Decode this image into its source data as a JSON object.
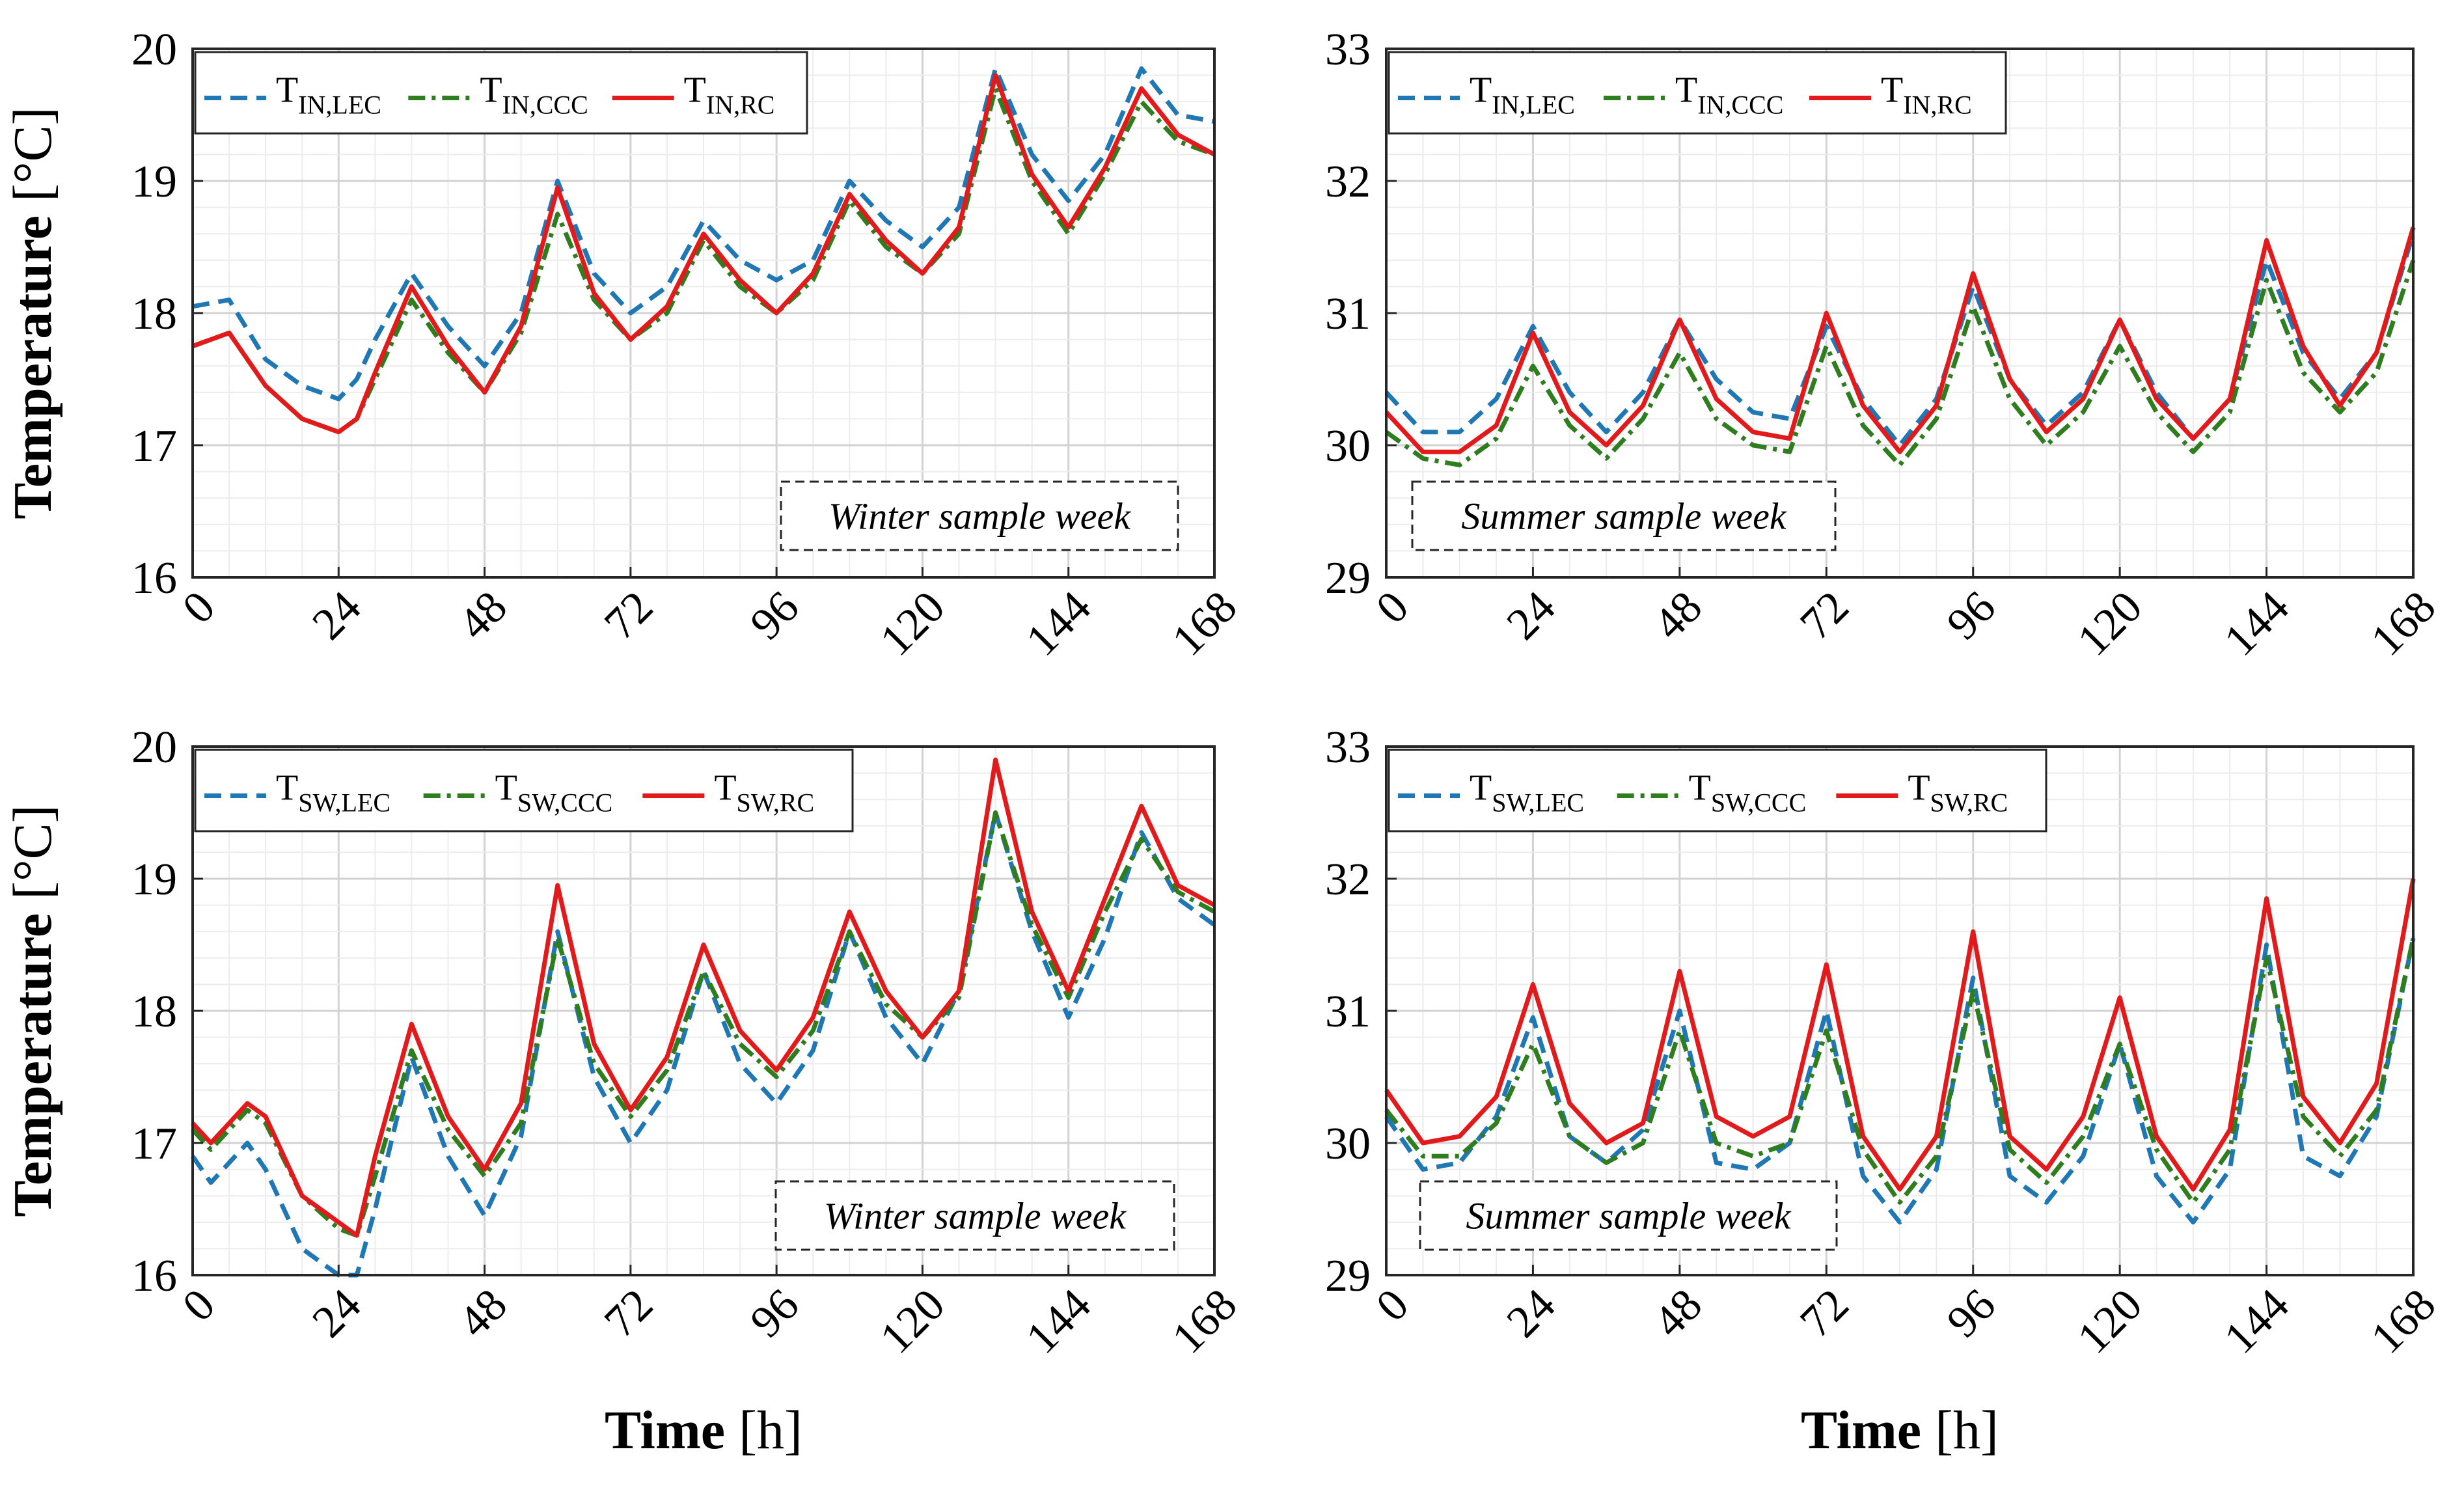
{
  "figure": {
    "ylabel_bold": "Temperature",
    "ylabel_unit": "[°C]",
    "xlabel_bold": "Time",
    "xlabel_unit": "[h]"
  },
  "chart_data": [
    {
      "type": "line",
      "panel": "top-left",
      "annotation": "Winter sample week",
      "ylabel": "Temperature [°C]",
      "xlabel": "",
      "xlim": [
        0,
        168
      ],
      "ylim": [
        16,
        20
      ],
      "xticks": [
        0,
        24,
        48,
        72,
        96,
        120,
        144,
        168
      ],
      "yticks": [
        16,
        17,
        18,
        19,
        20
      ],
      "grid": true,
      "legend": "top-left, horizontal",
      "x": [
        0,
        6,
        12,
        18,
        24,
        27,
        30,
        36,
        42,
        48,
        54,
        60,
        66,
        72,
        78,
        84,
        90,
        96,
        102,
        108,
        114,
        120,
        126,
        132,
        138,
        144,
        150,
        156,
        162,
        168
      ],
      "series": [
        {
          "name": "T",
          "sub": "IN,LEC",
          "style": "dashed",
          "color": "#1f77b4",
          "values": [
            18.05,
            18.1,
            17.65,
            17.45,
            17.35,
            17.5,
            17.8,
            18.3,
            17.9,
            17.6,
            18.0,
            19.0,
            18.3,
            18.0,
            18.2,
            18.7,
            18.4,
            18.25,
            18.4,
            19.0,
            18.7,
            18.5,
            18.8,
            19.85,
            19.2,
            18.85,
            19.2,
            19.85,
            19.5,
            19.45
          ]
        },
        {
          "name": "T",
          "sub": "IN,CCC",
          "style": "dashdot",
          "color": "#2e7d1e",
          "values": [
            17.75,
            17.85,
            17.45,
            17.2,
            17.1,
            17.2,
            17.5,
            18.1,
            17.7,
            17.4,
            17.85,
            18.75,
            18.1,
            17.8,
            18.0,
            18.55,
            18.2,
            18.0,
            18.25,
            18.85,
            18.5,
            18.3,
            18.6,
            19.7,
            19.0,
            18.6,
            19.05,
            19.6,
            19.3,
            19.2
          ]
        },
        {
          "name": "T",
          "sub": "IN,RC",
          "style": "solid",
          "color": "#e31a1c",
          "values": [
            17.75,
            17.85,
            17.45,
            17.2,
            17.1,
            17.2,
            17.55,
            18.2,
            17.75,
            17.4,
            17.9,
            18.95,
            18.15,
            17.8,
            18.05,
            18.6,
            18.25,
            18.0,
            18.3,
            18.9,
            18.55,
            18.3,
            18.65,
            19.8,
            19.05,
            18.65,
            19.1,
            19.7,
            19.35,
            19.2
          ]
        }
      ]
    },
    {
      "type": "line",
      "panel": "top-right",
      "annotation": "Summer sample week",
      "ylabel": "",
      "xlabel": "",
      "xlim": [
        0,
        168
      ],
      "ylim": [
        29,
        33
      ],
      "xticks": [
        0,
        24,
        48,
        72,
        96,
        120,
        144,
        168
      ],
      "yticks": [
        29,
        30,
        31,
        32,
        33
      ],
      "grid": true,
      "legend": "top-left, horizontal",
      "x": [
        0,
        6,
        12,
        18,
        24,
        30,
        36,
        42,
        48,
        54,
        60,
        66,
        72,
        78,
        84,
        90,
        96,
        102,
        108,
        114,
        120,
        126,
        132,
        138,
        144,
        150,
        156,
        162,
        168
      ],
      "series": [
        {
          "name": "T",
          "sub": "IN,LEC",
          "style": "dashed",
          "color": "#1f77b4",
          "values": [
            30.4,
            30.1,
            30.1,
            30.35,
            30.9,
            30.4,
            30.1,
            30.4,
            30.95,
            30.5,
            30.25,
            30.2,
            30.9,
            30.35,
            30.0,
            30.35,
            31.2,
            30.5,
            30.15,
            30.4,
            30.95,
            30.4,
            30.05,
            30.35,
            31.4,
            30.7,
            30.35,
            30.7,
            31.6
          ]
        },
        {
          "name": "T",
          "sub": "IN,CCC",
          "style": "dashdot",
          "color": "#2e7d1e",
          "values": [
            30.1,
            29.9,
            29.85,
            30.05,
            30.6,
            30.15,
            29.9,
            30.2,
            30.7,
            30.2,
            30.0,
            29.95,
            30.75,
            30.15,
            29.85,
            30.2,
            31.05,
            30.35,
            30.0,
            30.25,
            30.75,
            30.25,
            29.95,
            30.25,
            31.25,
            30.55,
            30.25,
            30.55,
            31.4
          ]
        },
        {
          "name": "T",
          "sub": "IN,RC",
          "style": "solid",
          "color": "#e31a1c",
          "values": [
            30.25,
            29.95,
            29.95,
            30.15,
            30.85,
            30.25,
            30.0,
            30.3,
            30.95,
            30.35,
            30.1,
            30.05,
            31.0,
            30.3,
            29.95,
            30.3,
            31.3,
            30.5,
            30.1,
            30.35,
            30.95,
            30.35,
            30.05,
            30.35,
            31.55,
            30.75,
            30.3,
            30.7,
            31.65
          ]
        }
      ]
    },
    {
      "type": "line",
      "panel": "bottom-left",
      "annotation": "Winter sample week",
      "ylabel": "Temperature [°C]",
      "xlabel": "Time [h]",
      "xlim": [
        0,
        168
      ],
      "ylim": [
        16,
        20
      ],
      "xticks": [
        0,
        24,
        48,
        72,
        96,
        120,
        144,
        168
      ],
      "yticks": [
        16,
        17,
        18,
        19,
        20
      ],
      "grid": true,
      "legend": "top-left, horizontal",
      "x": [
        0,
        3,
        6,
        9,
        12,
        18,
        24,
        27,
        30,
        36,
        42,
        48,
        54,
        60,
        66,
        72,
        78,
        84,
        90,
        96,
        102,
        108,
        114,
        120,
        126,
        132,
        138,
        144,
        150,
        156,
        162,
        168
      ],
      "series": [
        {
          "name": "T",
          "sub": "SW,LEC",
          "style": "dashed",
          "color": "#1f77b4",
          "values": [
            16.9,
            16.7,
            16.85,
            17.0,
            16.8,
            16.2,
            16.0,
            16.0,
            16.5,
            17.65,
            16.9,
            16.45,
            17.05,
            18.6,
            17.5,
            17.0,
            17.4,
            18.3,
            17.6,
            17.3,
            17.7,
            18.6,
            17.95,
            17.6,
            18.15,
            19.5,
            18.6,
            17.95,
            18.55,
            19.35,
            18.85,
            18.65
          ]
        },
        {
          "name": "T",
          "sub": "SW,CCC",
          "style": "dashdot",
          "color": "#2e7d1e",
          "values": [
            17.1,
            16.95,
            17.1,
            17.25,
            17.15,
            16.6,
            16.35,
            16.3,
            16.75,
            17.7,
            17.1,
            16.75,
            17.15,
            18.55,
            17.6,
            17.2,
            17.55,
            18.3,
            17.75,
            17.5,
            17.85,
            18.6,
            18.05,
            17.8,
            18.1,
            19.5,
            18.65,
            18.1,
            18.75,
            19.3,
            18.9,
            18.75
          ]
        },
        {
          "name": "T",
          "sub": "SW,RC",
          "style": "solid",
          "color": "#e31a1c",
          "values": [
            17.15,
            17.0,
            17.15,
            17.3,
            17.2,
            16.6,
            16.4,
            16.3,
            16.9,
            17.9,
            17.2,
            16.8,
            17.3,
            18.95,
            17.75,
            17.25,
            17.65,
            18.5,
            17.85,
            17.55,
            17.95,
            18.75,
            18.15,
            17.8,
            18.15,
            19.9,
            18.75,
            18.15,
            18.85,
            19.55,
            18.95,
            18.8
          ]
        }
      ]
    },
    {
      "type": "line",
      "panel": "bottom-right",
      "annotation": "Summer sample week",
      "ylabel": "",
      "xlabel": "Time [h]",
      "xlim": [
        0,
        168
      ],
      "ylim": [
        29,
        33
      ],
      "xticks": [
        0,
        24,
        48,
        72,
        96,
        120,
        144,
        168
      ],
      "yticks": [
        29,
        30,
        31,
        32,
        33
      ],
      "grid": true,
      "legend": "top-left, horizontal",
      "x": [
        0,
        6,
        12,
        18,
        24,
        30,
        36,
        42,
        48,
        54,
        60,
        66,
        72,
        78,
        84,
        90,
        96,
        102,
        108,
        114,
        120,
        126,
        132,
        138,
        144,
        150,
        156,
        162,
        168
      ],
      "series": [
        {
          "name": "T",
          "sub": "SW,LEC",
          "style": "dashed",
          "color": "#1f77b4",
          "values": [
            30.2,
            29.8,
            29.85,
            30.2,
            30.95,
            30.05,
            29.85,
            30.1,
            31.0,
            29.85,
            29.8,
            30.0,
            31.0,
            29.75,
            29.4,
            29.8,
            31.25,
            29.75,
            29.55,
            29.9,
            30.75,
            29.75,
            29.4,
            29.8,
            31.5,
            29.9,
            29.75,
            30.2,
            31.55
          ]
        },
        {
          "name": "T",
          "sub": "SW,CCC",
          "style": "dashdot",
          "color": "#2e7d1e",
          "values": [
            30.25,
            29.9,
            29.9,
            30.15,
            30.75,
            30.05,
            29.85,
            30.0,
            30.85,
            30.0,
            29.9,
            30.0,
            30.85,
            29.95,
            29.55,
            29.9,
            31.15,
            29.95,
            29.7,
            30.05,
            30.75,
            29.95,
            29.55,
            29.95,
            31.4,
            30.2,
            29.9,
            30.25,
            31.55
          ]
        },
        {
          "name": "T",
          "sub": "SW,RC",
          "style": "solid",
          "color": "#e31a1c",
          "values": [
            30.4,
            30.0,
            30.05,
            30.35,
            31.2,
            30.3,
            30.0,
            30.15,
            31.3,
            30.2,
            30.05,
            30.2,
            31.35,
            30.05,
            29.65,
            30.05,
            31.6,
            30.05,
            29.8,
            30.2,
            31.1,
            30.05,
            29.65,
            30.1,
            31.85,
            30.35,
            30.0,
            30.45,
            32.0
          ]
        }
      ]
    }
  ]
}
